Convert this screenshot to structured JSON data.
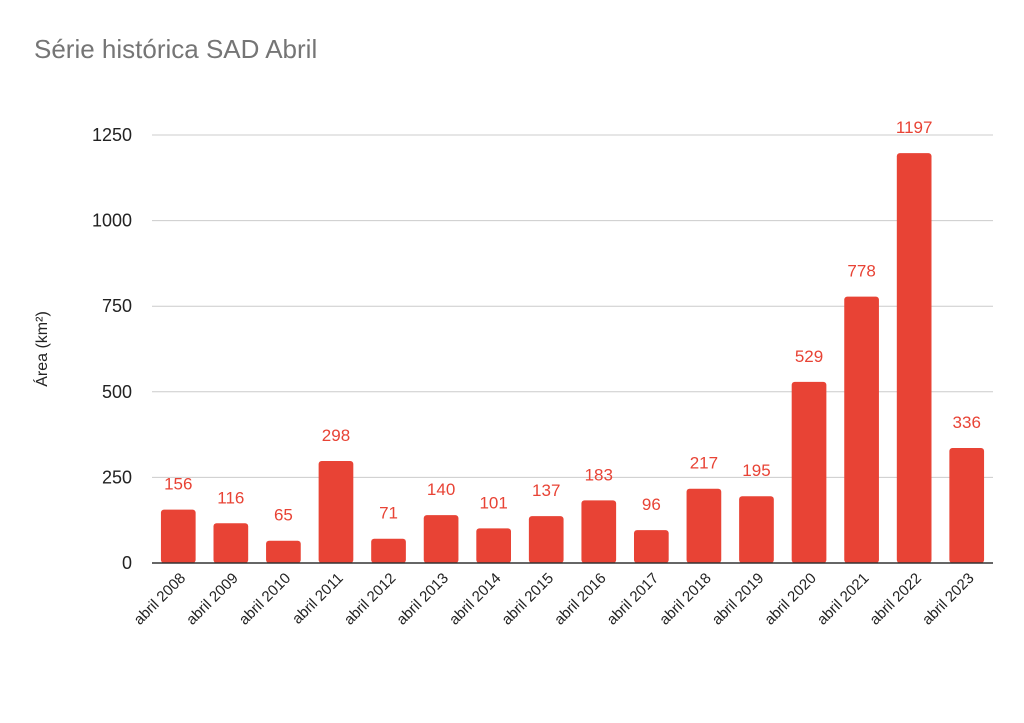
{
  "chart_data": {
    "type": "bar",
    "title": "Série histórica SAD Abril",
    "xlabel": "",
    "ylabel": "Área (km²)",
    "categories": [
      "abril 2008",
      "abril 2009",
      "abril 2010",
      "abril 2011",
      "abril 2012",
      "abril 2013",
      "abril 2014",
      "abril 2015",
      "abril 2016",
      "abril 2017",
      "abril 2018",
      "abril 2019",
      "abril 2020",
      "abril 2021",
      "abril 2022",
      "abril 2023"
    ],
    "values": [
      156,
      116,
      65,
      298,
      71,
      140,
      101,
      137,
      183,
      96,
      217,
      195,
      529,
      778,
      1197,
      336
    ],
    "ylim": [
      0,
      1250
    ],
    "yticks": [
      0,
      250,
      500,
      750,
      1000,
      1250
    ],
    "grid": true,
    "legend": "none",
    "bar_color": "#E84335",
    "label_color": "#E84335"
  }
}
